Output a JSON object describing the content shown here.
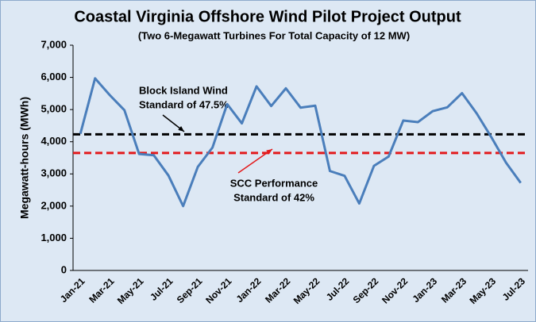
{
  "chart_data": {
    "type": "line",
    "title": "Coastal Virginia Offshore Wind Pilot Project Output",
    "subtitle": "(Two 6-Megawatt Turbines For Total Capacity of 12 MW)",
    "y_label": "Megawatt-hours (MWh)",
    "categories": [
      "Jan-21",
      null,
      "Mar-21",
      null,
      "May-21",
      null,
      "Jul-21",
      null,
      "Sep-21",
      null,
      "Nov-21",
      null,
      "Jan-22",
      null,
      "Mar-22",
      null,
      "May-22",
      null,
      "Jul-22",
      null,
      "Sep-22",
      null,
      "Nov-22",
      null,
      "Jan-23",
      null,
      "Mar-23",
      null,
      "May-23",
      null,
      "Jul-23"
    ],
    "values": [
      4250,
      5970,
      5450,
      4980,
      3620,
      3580,
      2950,
      2000,
      3220,
      3820,
      5170,
      4570,
      5720,
      5110,
      5660,
      5060,
      5120,
      3090,
      2940,
      2080,
      3250,
      3540,
      4660,
      4610,
      4950,
      5070,
      5510,
      4880,
      4140,
      3350,
      2720
    ],
    "color": "#4a7ebb",
    "ylim": [
      0,
      7000
    ],
    "yticks": [
      0,
      {
        "value": 1000,
        "label": "1,000"
      },
      {
        "value": 2000,
        "label": "2,000"
      },
      {
        "value": 3000,
        "label": "3,000"
      },
      {
        "value": 4000,
        "label": "4,000"
      },
      {
        "value": 5000,
        "label": "5,000"
      },
      {
        "value": 6000,
        "label": "6,000"
      },
      {
        "value": 7000,
        "label": "7,000"
      }
    ],
    "grid": false,
    "reference_lines": [
      {
        "value": 4230,
        "color": "#000000",
        "label": [
          "Block Island Wind",
          "Standard of 47.5%"
        ]
      },
      {
        "value": 3650,
        "color": "#e31a1c",
        "label": [
          "SCC Performance",
          "Standard of 42%"
        ]
      }
    ]
  }
}
